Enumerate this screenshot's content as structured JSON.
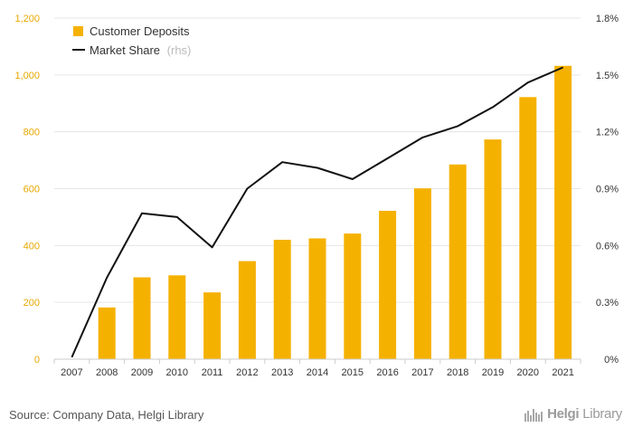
{
  "source": "Source: Company Data, Helgi Library",
  "logo": {
    "word1": "Helgi",
    "word2": "Library"
  },
  "colors": {
    "bar": "#F5B100",
    "line": "#111111",
    "left_axis": "#E6A800",
    "grid": "#e6e6e6",
    "axis_text": "#333333",
    "rhs_note": "#bbbbbb"
  },
  "chart_data": {
    "type": "bar",
    "categories": [
      "2007",
      "2008",
      "2009",
      "2010",
      "2011",
      "2012",
      "2013",
      "2014",
      "2015",
      "2016",
      "2017",
      "2018",
      "2019",
      "2020",
      "2021"
    ],
    "series": [
      {
        "name": "Customer Deposits",
        "type": "bar",
        "axis": "left",
        "values": [
          0,
          182,
          288,
          295,
          235,
          345,
          420,
          425,
          442,
          522,
          601,
          685,
          773,
          922,
          1032
        ]
      },
      {
        "name": "Market Share",
        "type": "line",
        "axis": "right",
        "values": [
          0.0001,
          0.0043,
          0.0077,
          0.0075,
          0.0059,
          0.009,
          0.0104,
          0.0101,
          0.0095,
          0.0106,
          0.0117,
          0.0123,
          0.0133,
          0.0146,
          0.0154
        ]
      }
    ],
    "legend": {
      "position": "top-left",
      "rhs_note": "(rhs)"
    },
    "left_axis": {
      "ylim": [
        0,
        1200
      ],
      "ticks": [
        0,
        200,
        400,
        600,
        800,
        1000,
        1200
      ],
      "tick_labels": [
        "0",
        "200",
        "400",
        "600",
        "800",
        "1,000",
        "1,200"
      ]
    },
    "right_axis": {
      "ylim": [
        0,
        0.018
      ],
      "ticks": [
        0,
        0.003,
        0.006,
        0.009,
        0.012,
        0.015,
        0.018
      ],
      "tick_labels": [
        "0%",
        "0.3%",
        "0.6%",
        "0.9%",
        "1.2%",
        "1.5%",
        "1.8%"
      ]
    },
    "grid": true
  }
}
